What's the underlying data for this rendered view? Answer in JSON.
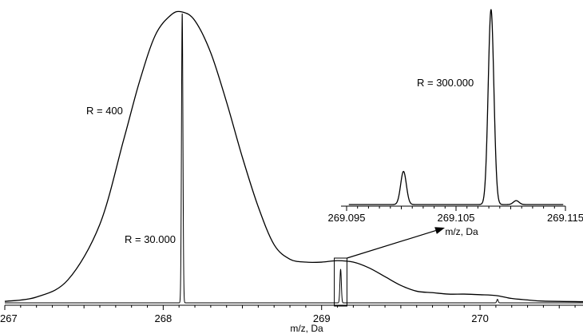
{
  "chart_data": [
    {
      "id": "main",
      "type": "line",
      "xlabel": "m/z, Da",
      "xlim": [
        267,
        270.65
      ],
      "ylim": [
        0,
        1.0
      ],
      "ticks": [
        267,
        268,
        269,
        270
      ],
      "tick_labels": [
        "267",
        "268",
        "269",
        "270"
      ],
      "series": [
        {
          "key": "r400",
          "peak_labels": "R = 400",
          "x": [
            267.0,
            267.2,
            267.4,
            267.6,
            267.75,
            267.85,
            267.95,
            268.05,
            268.12,
            268.2,
            268.3,
            268.4,
            268.5,
            268.6,
            268.7,
            268.8,
            268.9,
            269.0,
            269.1,
            269.2,
            269.3,
            269.4,
            269.5,
            269.6,
            269.7,
            269.8,
            269.9,
            270.0,
            270.1,
            270.2,
            270.3,
            270.4,
            270.65
          ],
          "y": [
            0.005,
            0.02,
            0.08,
            0.27,
            0.56,
            0.76,
            0.92,
            0.99,
            1.0,
            0.97,
            0.86,
            0.69,
            0.5,
            0.33,
            0.2,
            0.15,
            0.14,
            0.14,
            0.145,
            0.14,
            0.12,
            0.09,
            0.06,
            0.04,
            0.035,
            0.03,
            0.03,
            0.028,
            0.025,
            0.015,
            0.01,
            0.006,
            0.004
          ]
        },
        {
          "key": "r30000",
          "peak_labels": "R = 30.000",
          "peaks": [
            {
              "x": 268.12,
              "y": 0.995
            },
            {
              "x": 269.12,
              "y": 0.115
            },
            {
              "x": 270.11,
              "y": 0.012
            }
          ]
        }
      ],
      "highlight_box": {
        "x0": 269.08,
        "x1": 269.16
      }
    },
    {
      "id": "inset",
      "type": "line",
      "xlabel": "m/z, Da",
      "xlim": [
        269.095,
        269.115
      ],
      "ylim": [
        0,
        1.0
      ],
      "tick_labels": [
        "269.095",
        "269.105",
        "269.115"
      ],
      "series": [
        {
          "key": "r300000",
          "peak_labels": "R = 300.000",
          "peaks": [
            {
              "x": 269.1002,
              "y": 0.17
            },
            {
              "x": 269.1082,
              "y": 1.0
            },
            {
              "x": 269.1105,
              "y": 0.02
            }
          ]
        }
      ]
    }
  ]
}
